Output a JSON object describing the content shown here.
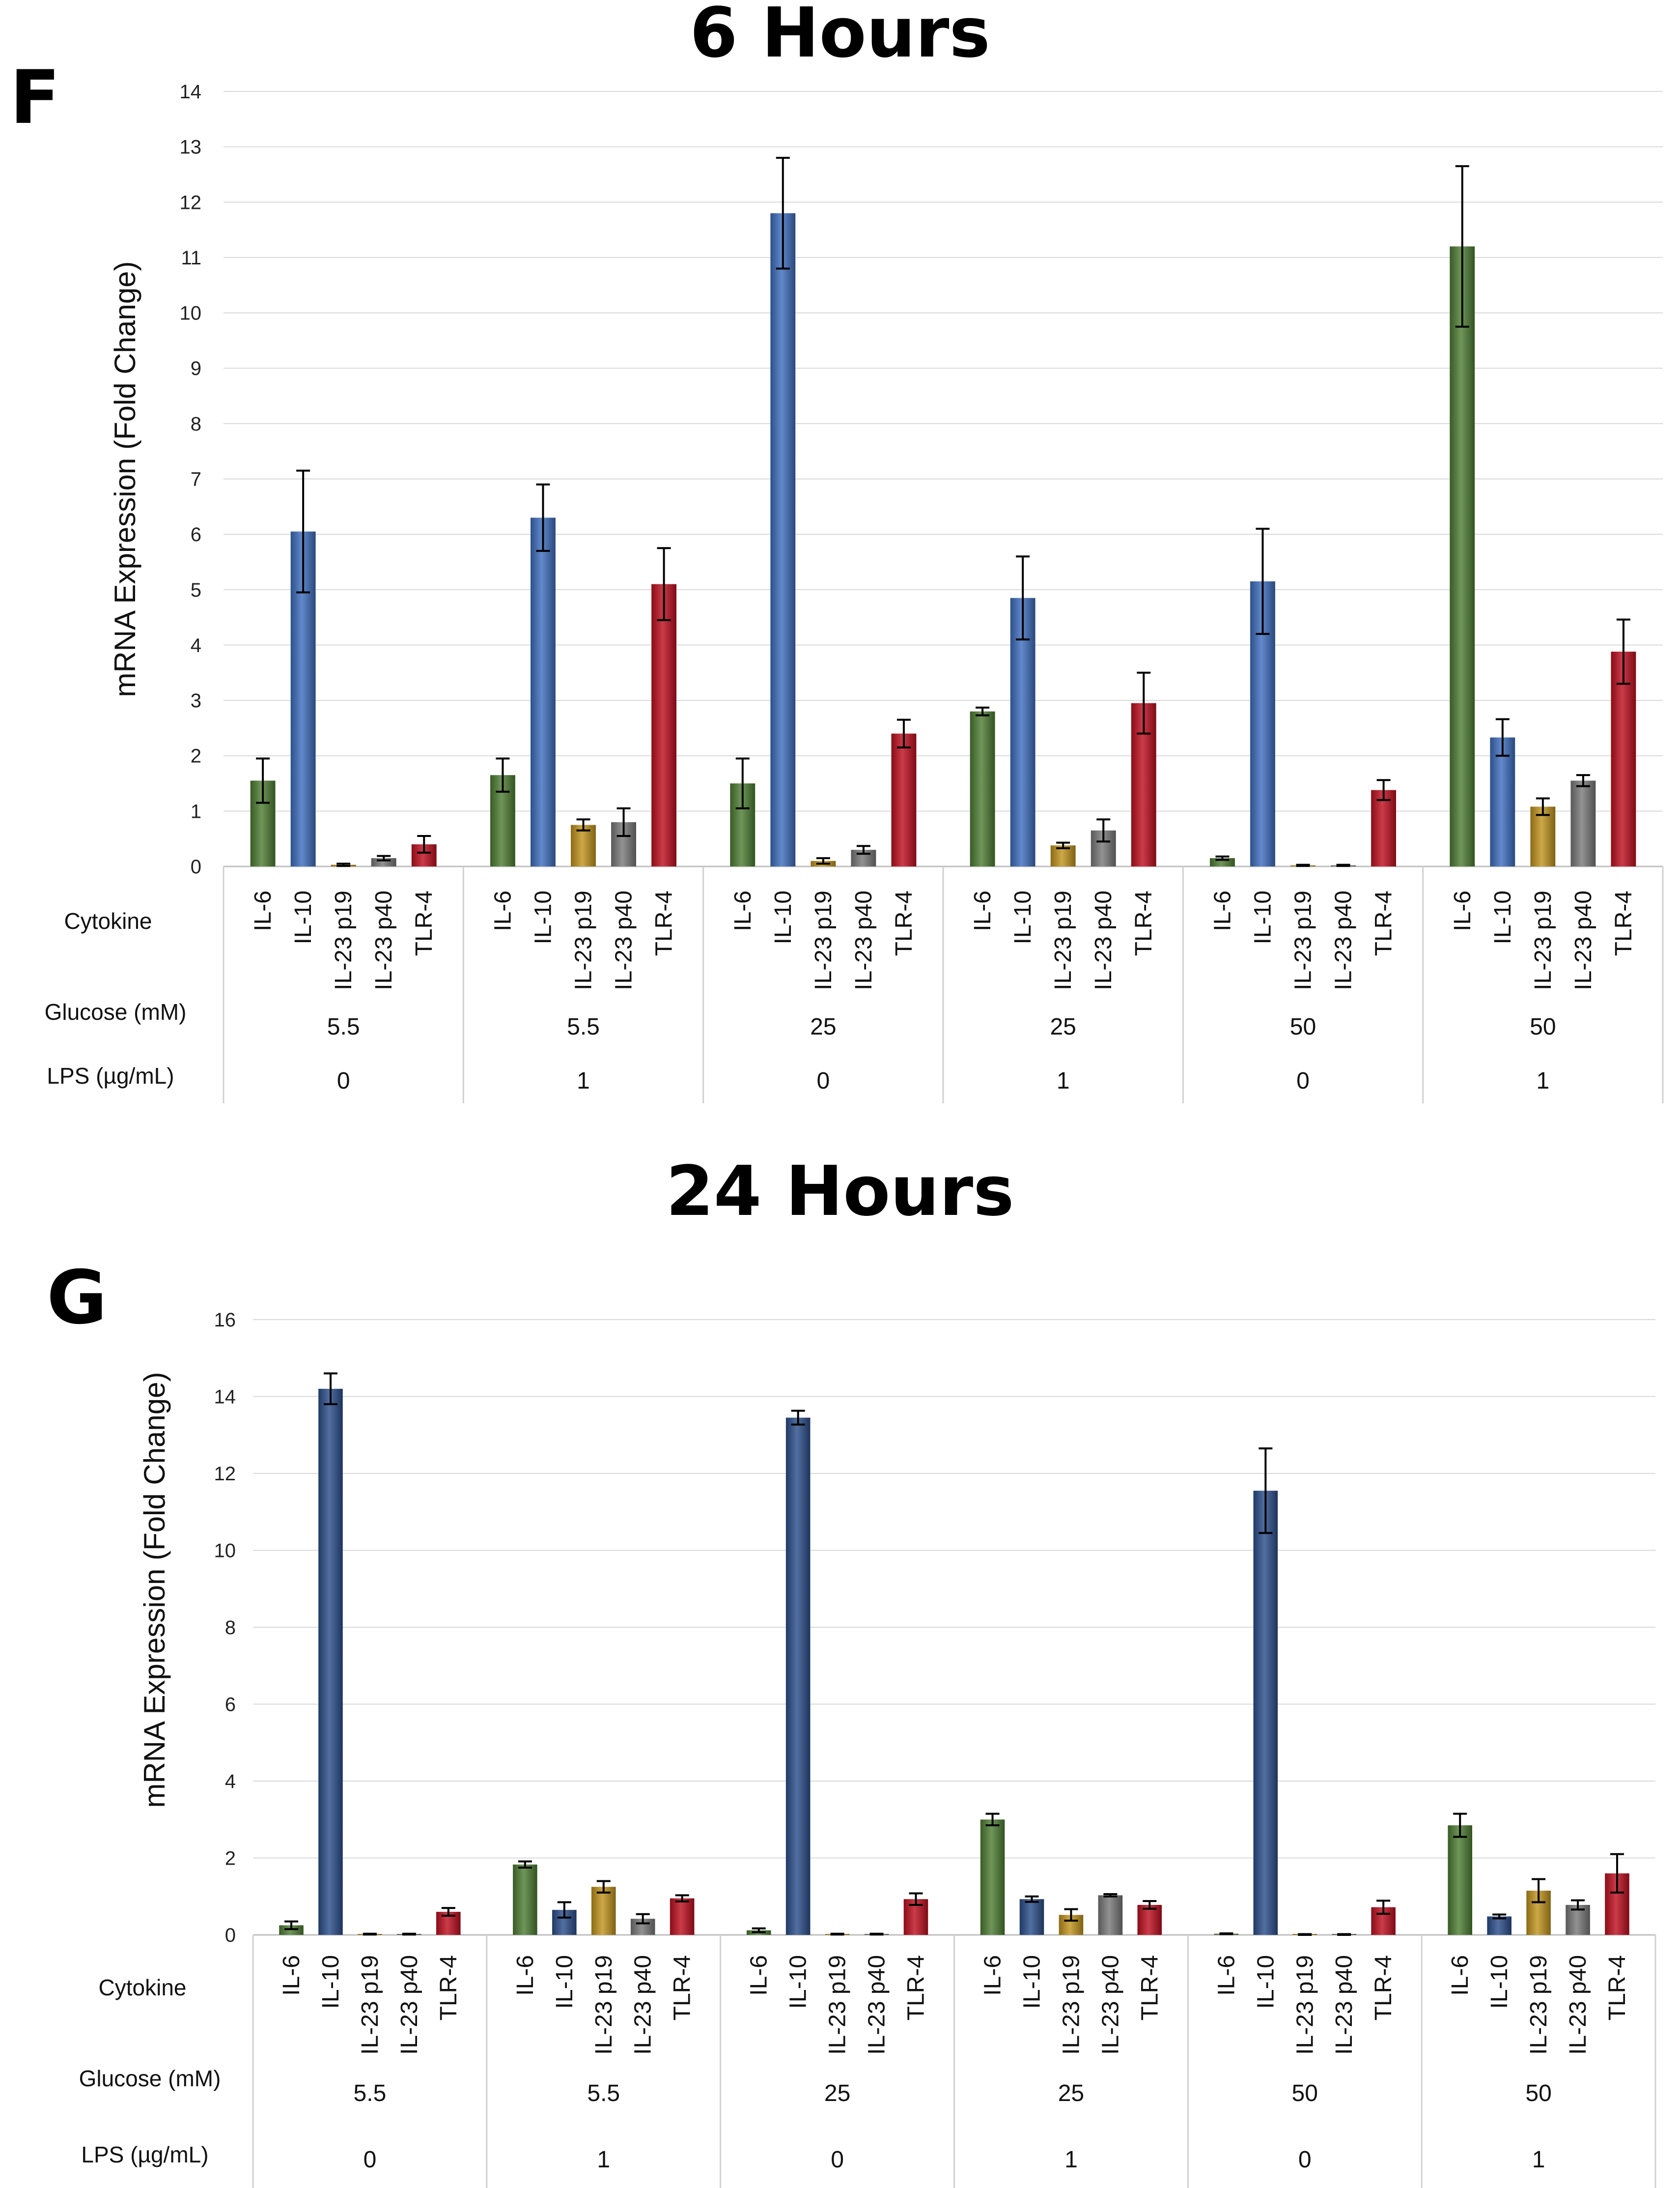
{
  "chart_data": [
    {
      "type": "bar",
      "panel_label": "F",
      "title": "6 Hours",
      "ylabel": "mRNA Expression (Fold Change)",
      "ylim": [
        0,
        14
      ],
      "ytick_step": 1,
      "grid": true,
      "row_labels": {
        "cytokine": "Cytokine",
        "glucose": "Glucose (mM)",
        "lps": "LPS (µg/mL)"
      },
      "categories": [
        "IL-6",
        "IL-10",
        "IL-23 p19",
        "IL-23 p40",
        "TLR-4"
      ],
      "colors": [
        "#4f7f35",
        "#3f6fbf",
        "#c2951f",
        "#7a7a7a",
        "#c01020"
      ],
      "groups": [
        {
          "glucose": "5.5",
          "lps": "0",
          "values": [
            1.55,
            6.05,
            0.03,
            0.15,
            0.4
          ],
          "errors": [
            0.4,
            1.1,
            0.02,
            0.04,
            0.15
          ]
        },
        {
          "glucose": "5.5",
          "lps": "1",
          "values": [
            1.65,
            6.3,
            0.75,
            0.8,
            5.1
          ],
          "errors": [
            0.3,
            0.6,
            0.1,
            0.25,
            0.65
          ]
        },
        {
          "glucose": "25",
          "lps": "0",
          "values": [
            1.5,
            11.8,
            0.1,
            0.3,
            2.4
          ],
          "errors": [
            0.45,
            1.0,
            0.05,
            0.07,
            0.25
          ]
        },
        {
          "glucose": "25",
          "lps": "1",
          "values": [
            2.8,
            4.85,
            0.38,
            0.65,
            2.95
          ],
          "errors": [
            0.07,
            0.75,
            0.05,
            0.2,
            0.55
          ]
        },
        {
          "glucose": "50",
          "lps": "0",
          "values": [
            0.15,
            5.15,
            0.02,
            0.02,
            1.38
          ],
          "errors": [
            0.03,
            0.95,
            0.01,
            0.01,
            0.18
          ]
        },
        {
          "glucose": "50",
          "lps": "1",
          "values": [
            11.2,
            2.33,
            1.08,
            1.55,
            3.88
          ],
          "errors": [
            1.45,
            0.33,
            0.15,
            0.1,
            0.58
          ]
        }
      ]
    },
    {
      "type": "bar",
      "panel_label": "G",
      "title": "24 Hours",
      "ylabel": "mRNA Expression (Fold Change)",
      "ylim": [
        0,
        16
      ],
      "ytick_step": 2,
      "grid": true,
      "row_labels": {
        "cytokine": "Cytokine",
        "glucose": "Glucose (mM)",
        "lps": "LPS (µg/mL)"
      },
      "categories": [
        "IL-6",
        "IL-10",
        "IL-23 p19",
        "IL-23 p40",
        "TLR-4"
      ],
      "colors": [
        "#4f7f35",
        "#2c4f8c",
        "#c2951f",
        "#7a7a7a",
        "#c01020"
      ],
      "groups": [
        {
          "glucose": "5.5",
          "lps": "0",
          "values": [
            0.25,
            14.2,
            0.02,
            0.02,
            0.6
          ],
          "errors": [
            0.1,
            0.4,
            0.01,
            0.01,
            0.1
          ]
        },
        {
          "glucose": "5.5",
          "lps": "1",
          "values": [
            1.83,
            0.65,
            1.25,
            0.42,
            0.95
          ],
          "errors": [
            0.08,
            0.2,
            0.15,
            0.12,
            0.08
          ]
        },
        {
          "glucose": "25",
          "lps": "0",
          "values": [
            0.12,
            13.45,
            0.02,
            0.02,
            0.93
          ],
          "errors": [
            0.05,
            0.18,
            0.01,
            0.01,
            0.15
          ]
        },
        {
          "glucose": "25",
          "lps": "1",
          "values": [
            3.0,
            0.93,
            0.52,
            1.03,
            0.78
          ],
          "errors": [
            0.15,
            0.07,
            0.15,
            0.03,
            0.1
          ]
        },
        {
          "glucose": "50",
          "lps": "0",
          "values": [
            0.03,
            11.55,
            0.01,
            0.01,
            0.72
          ],
          "errors": [
            0.01,
            1.1,
            0.01,
            0.01,
            0.17
          ]
        },
        {
          "glucose": "50",
          "lps": "1",
          "values": [
            2.85,
            0.48,
            1.15,
            0.78,
            1.6
          ],
          "errors": [
            0.3,
            0.05,
            0.3,
            0.12,
            0.5
          ]
        }
      ]
    }
  ]
}
